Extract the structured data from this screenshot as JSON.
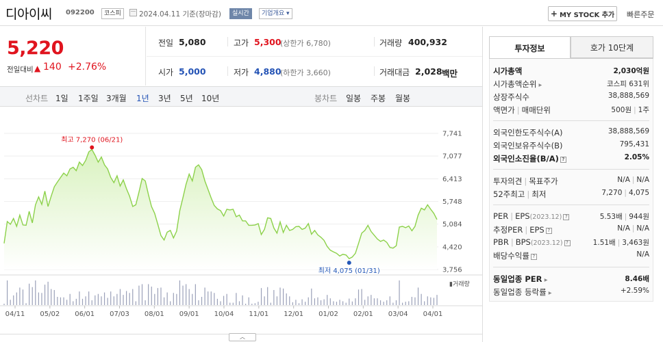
{
  "stock": {
    "name": "디아이씨",
    "code": "092200",
    "market": "코스피",
    "date_text": "2024.04.11  기준(장마감)",
    "realtime": "실시간",
    "overview": "기업개요 ▾",
    "mystock_label": "MY STOCK 추가",
    "order_label": "빠른주문"
  },
  "price": {
    "current": "5,220",
    "vs_label": "전일대비",
    "arrow": "▲",
    "change": "140",
    "rate": "+2.76%"
  },
  "summary": {
    "prev_label": "전일",
    "prev_value": "5,080",
    "high_label": "고가",
    "high_value": "5,300",
    "upper_limit": "(상한가 6,780)",
    "volume_label": "거래량",
    "volume_value": "400,932",
    "open_label": "시가",
    "open_value": "5,000",
    "low_label": "저가",
    "low_value": "4,880",
    "lower_limit": "(하한가 3,660)",
    "amount_label": "거래대금",
    "amount_value": "2,028",
    "amount_unit": "백만"
  },
  "periods": {
    "line_label": "선차트",
    "line_items": [
      "1일",
      "1주일",
      "3개월",
      "1년",
      "3년",
      "5년",
      "10년"
    ],
    "active": "1년",
    "candle_label": "봉차트",
    "candle_items": [
      "일봉",
      "주봉",
      "월봉"
    ]
  },
  "chart_data": {
    "type": "area",
    "x_ticks": [
      "04/11",
      "05/02",
      "06/01",
      "07/03",
      "08/01",
      "09/01",
      "10/04",
      "11/01",
      "12/01",
      "01/02",
      "02/01",
      "03/04",
      "04/01"
    ],
    "y_ticks": [
      7741,
      7077,
      6413,
      5748,
      5084,
      4420,
      3756
    ],
    "ylim": [
      3756,
      7741
    ],
    "max_label": "최고 7,270 (06/21)",
    "min_label": "최저 4,075 (01/31)",
    "volume_label": "거래량",
    "colors": {
      "line": "#8cd14a",
      "fill_top": "#d9f2bf",
      "max": "#e0141e",
      "min": "#2458b8"
    },
    "close_values": [
      4520,
      5160,
      5080,
      5250,
      5020,
      5350,
      5060,
      5050,
      5460,
      5120,
      5650,
      5880,
      5660,
      6050,
      5600,
      5900,
      6180,
      6320,
      6450,
      6580,
      6500,
      6700,
      6750,
      6650,
      6900,
      6800,
      6950,
      7200,
      7270,
      7100,
      6900,
      7050,
      6820,
      6700,
      6450,
      6300,
      6500,
      6200,
      6380,
      6120,
      5900,
      5600,
      5650,
      6020,
      6420,
      6350,
      5950,
      5600,
      5400,
      5080,
      4750,
      4620,
      4850,
      4900,
      4680,
      4880,
      5480,
      5850,
      6250,
      6550,
      6350,
      6750,
      6820,
      6680,
      6350,
      6100,
      5850,
      5630,
      5530,
      5480,
      5320,
      5520,
      5500,
      5520,
      5300,
      5350,
      5180,
      5180,
      5050,
      5050,
      5060,
      5100,
      4780,
      4930,
      5270,
      5250,
      4970,
      4820,
      5150,
      4840,
      5050,
      4900,
      4930,
      5010,
      5020,
      4930,
      4970,
      5100,
      4790,
      4900,
      4770,
      4700,
      4610,
      4430,
      4320,
      4270,
      4230,
      4150,
      4200,
      4180,
      4075,
      4120,
      4230,
      4520,
      4820,
      4900,
      5050,
      4870,
      4760,
      4650,
      4580,
      4620,
      4550,
      4400,
      4380,
      4450,
      5000,
      5020,
      4980,
      5030,
      4890,
      5020,
      5350,
      5550,
      5500,
      5650,
      5520,
      5400,
      5220
    ]
  },
  "right": {
    "tab_invest": "투자정보",
    "tab_quote": "호가 10단계",
    "rows": {
      "market_cap_label": "시가총액",
      "market_cap_value": "2,030억원",
      "rank_label": "시가총액순위",
      "rank_value": "코스피 631위",
      "shares_label": "상장주식수",
      "shares_value": "38,888,569",
      "face_label": "액면가",
      "unit_label": "매매단위",
      "face_value": "500원",
      "unit_value": "1주",
      "foreign_limit_label": "외국인한도주식수(A)",
      "foreign_limit_value": "38,888,569",
      "foreign_hold_label": "외국인보유주식수(B)",
      "foreign_hold_value": "795,431",
      "foreign_rate_label": "외국인소진율(B/A)",
      "foreign_rate_value": "2.05%",
      "opinion_label": "투자의견",
      "target_label": "목표주가",
      "opinion_value": "N/A",
      "target_value": "N/A",
      "w52_label": "52주최고",
      "w52_low_label": "최저",
      "w52_high_value": "7,270",
      "w52_low_value": "4,075",
      "per_label": "PER",
      "eps_label": "EPS",
      "per_period": "(2023.12)",
      "per_value": "5.53배",
      "eps_value": "944원",
      "eper_label": "추정PER",
      "eeps_label": "EPS",
      "eper_value": "N/A",
      "eeps_value": "N/A",
      "pbr_label": "PBR",
      "bps_label": "BPS",
      "pbr_period": "(2023.12)",
      "pbr_value": "1.51배",
      "bps_value": "3,463원",
      "div_label": "배당수익률",
      "div_value": "N/A",
      "ind_per_label": "동일업종 PER",
      "ind_per_value": "8.46배",
      "ind_rate_label": "동일업종 등락률",
      "ind_rate_value": "+2.59%"
    }
  }
}
